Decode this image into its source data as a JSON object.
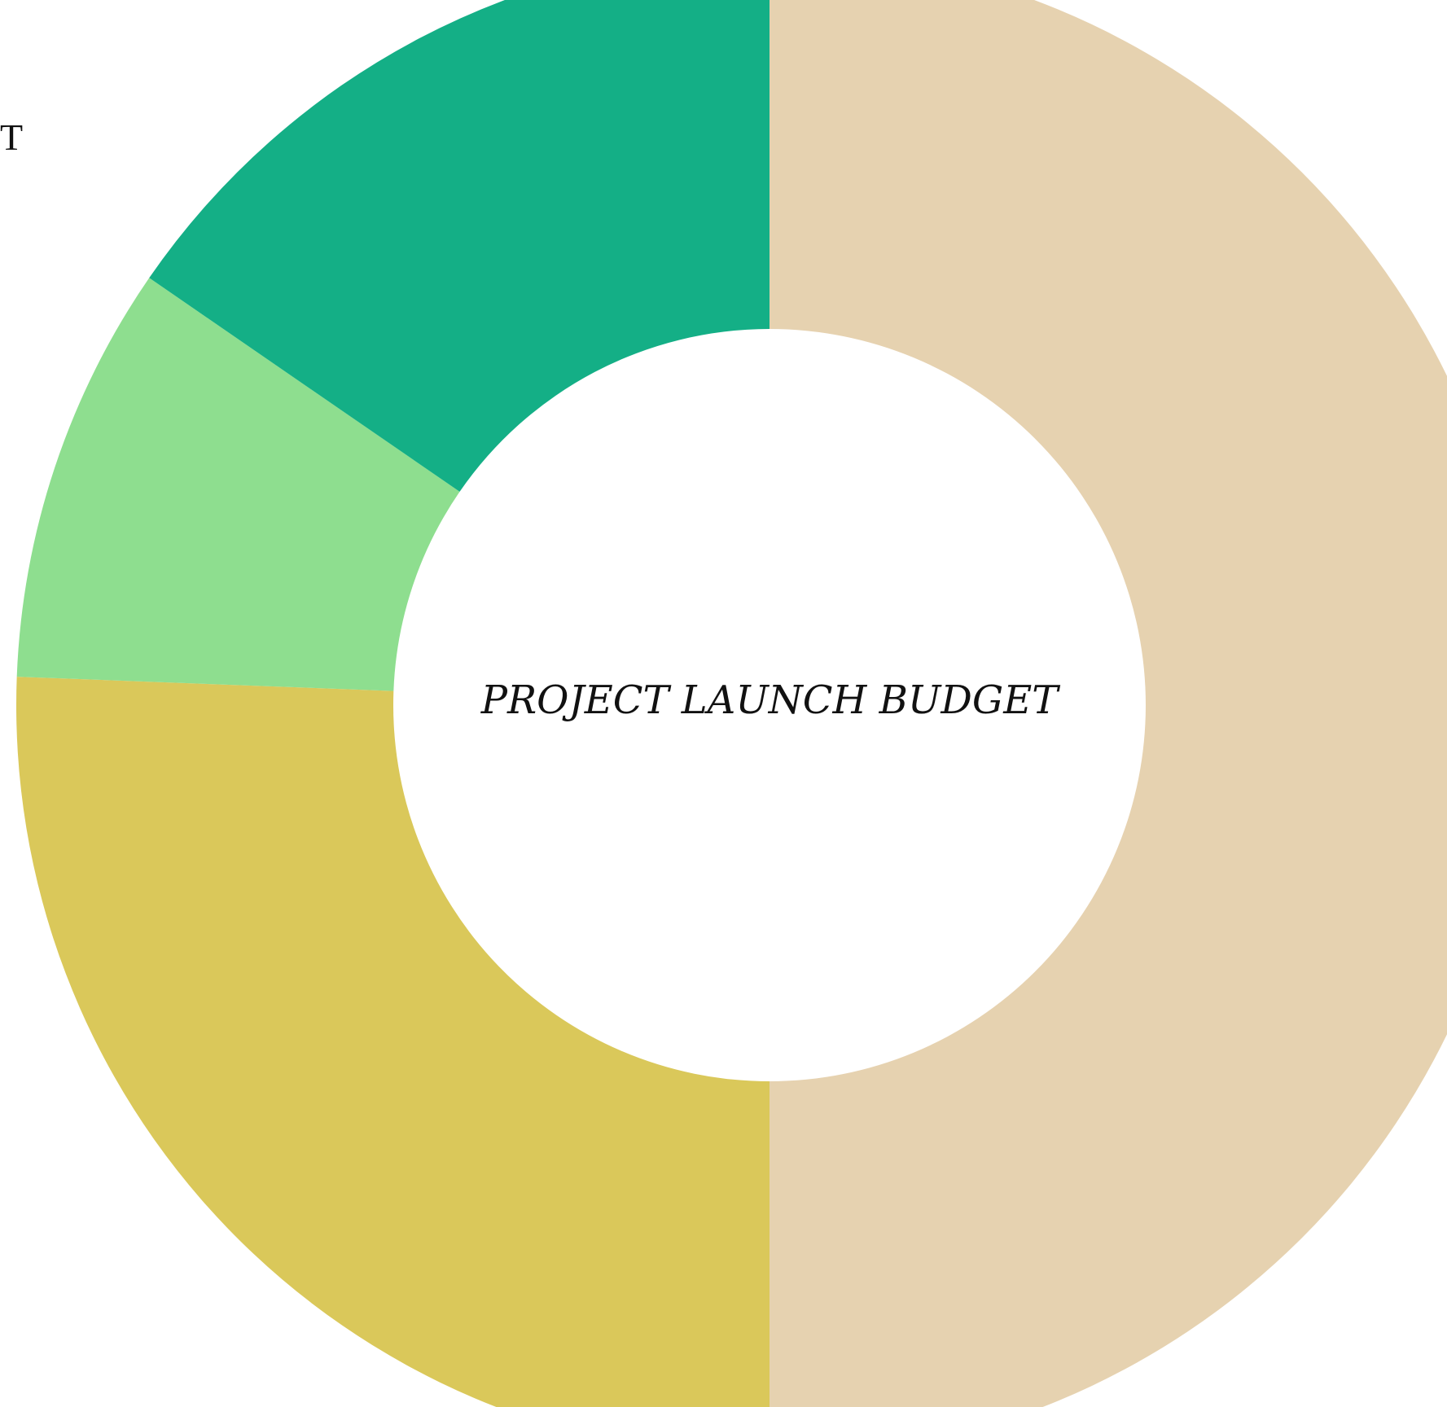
{
  "chart_data": {
    "type": "pie",
    "variant": "donut",
    "center_label": "PROJECT LAUNCH BUDGET",
    "slices": [
      {
        "value": 50.0,
        "color": "#E6D2B0"
      },
      {
        "value": 25.6,
        "color": "#DAC85A"
      },
      {
        "value": 9.0,
        "color": "#8EDE8F"
      },
      {
        "value": 15.4,
        "color": "#14AF86"
      }
    ],
    "start_angle_deg": 0,
    "direction": "clockwise",
    "legend": "none"
  },
  "edge_text": {
    "left_glyph": "T"
  }
}
